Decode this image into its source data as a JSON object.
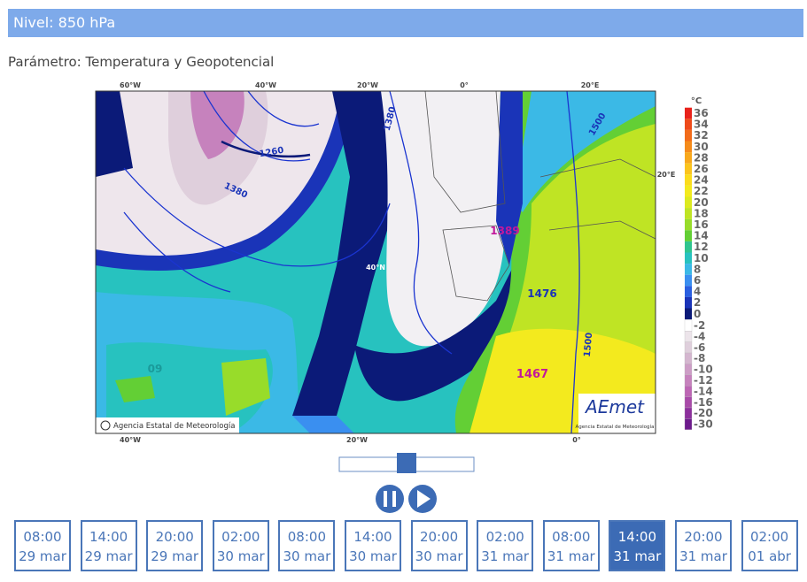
{
  "header": {
    "title": "Nivel: 850 hPa"
  },
  "parameter": "Parámetro: Temperatura y Geopotencial",
  "map": {
    "lon_top": [
      "60°W",
      "40°W",
      "20°W",
      "0°",
      "20°E"
    ],
    "lon_bottom": [
      "40°W",
      "20°W",
      "0°"
    ],
    "lat_labels": [
      "20°E",
      "40°N"
    ],
    "contour_labels": [
      "1260",
      "1380",
      "1380",
      "1500",
      "1500",
      "1389",
      "1476",
      "1467",
      "09"
    ],
    "copyright": "Agencia Estatal de Meteorología",
    "logo": {
      "name": "AEmet",
      "subtitle": "Agencia Estatal de Meteorología"
    }
  },
  "legend": {
    "unit": "°C",
    "positive": {
      "labels": [
        "36",
        "34",
        "32",
        "30",
        "28",
        "26",
        "24",
        "22",
        "20",
        "18",
        "16",
        "14",
        "12",
        "10",
        "8",
        "6",
        "4",
        "2",
        "0"
      ],
      "colors": [
        "#e8221b",
        "#ee4a1a",
        "#f26b1a",
        "#f58b1b",
        "#f8a81c",
        "#fbc41d",
        "#fbdc1d",
        "#f3ea1e",
        "#dcea20",
        "#bfe424",
        "#98dc2a",
        "#63cf35",
        "#2fc58f",
        "#27c2bf",
        "#3bb9e6",
        "#3a8ff0",
        "#2a5fe0",
        "#1a34b8",
        "#0b1a78"
      ]
    },
    "negative": {
      "labels": [
        "-2",
        "-4",
        "-6",
        "-8",
        "-10",
        "-12",
        "-14",
        "-16",
        "-20",
        "-30"
      ],
      "colors": [
        "#ffffff",
        "#ece4ea",
        "#dfcfdc",
        "#d4b6cf",
        "#cd9dc6",
        "#c682bd",
        "#bd66b4",
        "#a84aa8",
        "#8c2f9c",
        "#6d1a8c"
      ]
    }
  },
  "times": [
    {
      "time": "08:00",
      "date": "29 mar",
      "active": false
    },
    {
      "time": "14:00",
      "date": "29 mar",
      "active": false
    },
    {
      "time": "20:00",
      "date": "29 mar",
      "active": false
    },
    {
      "time": "02:00",
      "date": "30 mar",
      "active": false
    },
    {
      "time": "08:00",
      "date": "30 mar",
      "active": false
    },
    {
      "time": "14:00",
      "date": "30 mar",
      "active": false
    },
    {
      "time": "20:00",
      "date": "30 mar",
      "active": false
    },
    {
      "time": "02:00",
      "date": "31 mar",
      "active": false
    },
    {
      "time": "08:00",
      "date": "31 mar",
      "active": false
    },
    {
      "time": "14:00",
      "date": "31 mar",
      "active": true
    },
    {
      "time": "20:00",
      "date": "31 mar",
      "active": false
    },
    {
      "time": "02:00",
      "date": "01 abr",
      "active": false
    }
  ]
}
